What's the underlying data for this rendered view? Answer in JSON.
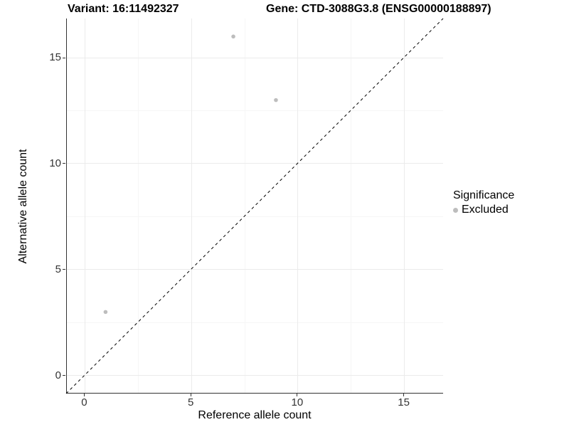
{
  "titles": {
    "left": "Variant: 16:11492327",
    "right": "Gene: CTD-3088G3.8 (ENSG00000188897)"
  },
  "axes": {
    "x_label": "Reference allele count",
    "y_label": "Alternative allele count"
  },
  "legend": {
    "title": "Significance",
    "items": [
      {
        "label": "Excluded",
        "color": "#bdbdbd"
      }
    ]
  },
  "colors": {
    "point": "#bdbdbd",
    "identity_line": "#000000",
    "axis_line": "#333333",
    "grid_major": "#ebebeb",
    "grid_minor": "#f6f6f6",
    "tick_text": "#333333"
  },
  "chart_data": {
    "type": "scatter",
    "title": "Variant: 16:11492327   Gene: CTD-3088G3.8 (ENSG00000188897)",
    "xlabel": "Reference allele count",
    "ylabel": "Alternative allele count",
    "xlim": [
      -0.85,
      16.85
    ],
    "ylim": [
      -0.85,
      16.85
    ],
    "x_ticks": [
      0,
      5,
      10,
      15
    ],
    "y_ticks": [
      0,
      5,
      10,
      15
    ],
    "x_minor_ticks": [
      2.5,
      7.5,
      12.5
    ],
    "y_minor_ticks": [
      2.5,
      7.5,
      12.5
    ],
    "grid": true,
    "legend_position": "right",
    "series": [
      {
        "name": "Excluded",
        "color": "#bdbdbd",
        "points": [
          {
            "x": 1,
            "y": 3
          },
          {
            "x": 7,
            "y": 16
          },
          {
            "x": 9,
            "y": 13
          }
        ]
      }
    ],
    "identity_line": {
      "slope": 1,
      "intercept": 0,
      "style": "dashed",
      "color": "#000000"
    }
  }
}
